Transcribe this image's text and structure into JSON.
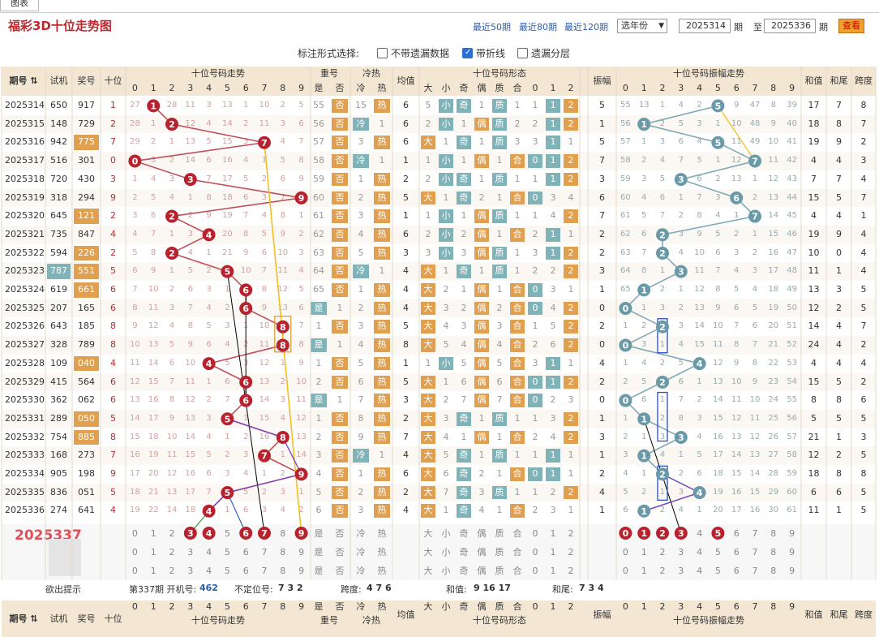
{
  "tab": {
    "label": "图表"
  },
  "header": {
    "title": "福彩3D十位走势图",
    "quick_links": [
      "最近50期",
      "最近80期",
      "最近120期"
    ],
    "year_select": "选年份",
    "from_value": "2025314",
    "from_suffix": "期",
    "to_label": "至",
    "to_value": "2025336",
    "to_suffix": "期",
    "query_button": "查看"
  },
  "options": {
    "label": "标注形式选择:",
    "items": [
      {
        "label": "不带遗漏数据",
        "checked": false
      },
      {
        "label": "带折线",
        "checked": true
      },
      {
        "label": "遗漏分层",
        "checked": false
      }
    ]
  },
  "table_headers": {
    "period": "期号",
    "trial": "试机",
    "prize": "奖号",
    "tens": "十位",
    "trend": "十位号码走势",
    "repeat": "重号",
    "repeat_sub": [
      "是",
      "否"
    ],
    "coldhot": "冷热",
    "coldhot_sub": [
      "冷",
      "热"
    ],
    "avg": "均值",
    "form": "十位号码形态",
    "form_sub": [
      "大",
      "小",
      "奇",
      "偶",
      "质",
      "合",
      "0",
      "1",
      "2"
    ],
    "amp": "振幅",
    "amp_trend": "十位号码振幅走势",
    "sum": "和值",
    "tail": "和尾",
    "span": "跨度",
    "digits": [
      "0",
      "1",
      "2",
      "3",
      "4",
      "5",
      "6",
      "7",
      "8",
      "9"
    ]
  },
  "rows": [
    {
      "p": "2025314",
      "t": "650",
      "z": "917",
      "d": 1,
      "tr": [
        "27",
        "",
        "28",
        "11",
        "3",
        "13",
        "1",
        "10",
        "2",
        "5"
      ],
      "rp": [
        "55",
        "否"
      ],
      "ch": [
        "15",
        "热"
      ],
      "av": "6",
      "fm": [
        "5",
        "小",
        "奇",
        "1",
        "质",
        "1",
        "1",
        "1",
        "2"
      ],
      "am": 5,
      "ao": [
        "55",
        "13",
        "1",
        "4",
        "2",
        "",
        "9",
        "47",
        "8",
        "39"
      ],
      "s": "17",
      "w": "7",
      "k": "8"
    },
    {
      "p": "2025315",
      "t": "148",
      "z": "729",
      "d": 2,
      "tr": [
        "28",
        "1",
        "",
        "12",
        "4",
        "14",
        "2",
        "11",
        "3",
        "6"
      ],
      "rp": [
        "56",
        "否"
      ],
      "ch": [
        "冷",
        "1"
      ],
      "av": "6",
      "fm": [
        "2",
        "小",
        "1",
        "偶",
        "质",
        "2",
        "2",
        "1",
        "2"
      ],
      "am": 1,
      "ao": [
        "56",
        "",
        "2",
        "5",
        "3",
        "1",
        "10",
        "48",
        "9",
        "40"
      ],
      "s": "18",
      "w": "8",
      "k": "7"
    },
    {
      "p": "2025316",
      "t": "942",
      "z": "775",
      "d": 7,
      "tr": [
        "29",
        "2",
        "1",
        "13",
        "5",
        "15",
        "3",
        "",
        "4",
        "7"
      ],
      "rp": [
        "57",
        "否"
      ],
      "ch": [
        "3",
        "热"
      ],
      "av": "6",
      "fm": [
        "大",
        "1",
        "奇",
        "1",
        "质",
        "3",
        "3",
        "1",
        "1"
      ],
      "am": 5,
      "ao": [
        "57",
        "1",
        "3",
        "6",
        "4",
        "",
        "11",
        "49",
        "10",
        "41"
      ],
      "s": "19",
      "w": "9",
      "k": "2"
    },
    {
      "p": "2025317",
      "t": "516",
      "z": "301",
      "d": 0,
      "tr": [
        "",
        "3",
        "2",
        "14",
        "6",
        "16",
        "4",
        "1",
        "5",
        "8"
      ],
      "rp": [
        "58",
        "否"
      ],
      "ch": [
        "冷",
        "1"
      ],
      "av": "1",
      "fm": [
        "1",
        "小",
        "1",
        "偶",
        "1",
        "合",
        "0",
        "1",
        "2"
      ],
      "am": 7,
      "ao": [
        "58",
        "2",
        "4",
        "7",
        "5",
        "1",
        "12",
        "",
        "11",
        "42"
      ],
      "s": "4",
      "w": "4",
      "k": "3"
    },
    {
      "p": "2025318",
      "t": "720",
      "z": "430",
      "d": 3,
      "tr": [
        "1",
        "4",
        "3",
        "",
        "7",
        "17",
        "5",
        "2",
        "6",
        "9"
      ],
      "rp": [
        "59",
        "否"
      ],
      "ch": [
        "1",
        "热"
      ],
      "av": "2",
      "fm": [
        "2",
        "小",
        "奇",
        "1",
        "质",
        "1",
        "1",
        "1",
        "2"
      ],
      "am": 3,
      "ao": [
        "59",
        "3",
        "5",
        "",
        "6",
        "2",
        "13",
        "1",
        "12",
        "43"
      ],
      "s": "7",
      "w": "7",
      "k": "4"
    },
    {
      "p": "2025319",
      "t": "318",
      "z": "294",
      "d": 9,
      "tr": [
        "2",
        "5",
        "4",
        "1",
        "8",
        "18",
        "6",
        "3",
        "7",
        ""
      ],
      "rp": [
        "60",
        "否"
      ],
      "ch": [
        "2",
        "热"
      ],
      "av": "5",
      "fm": [
        "大",
        "1",
        "奇",
        "2",
        "1",
        "合",
        "0",
        "3",
        "4"
      ],
      "am": 6,
      "ao": [
        "60",
        "4",
        "6",
        "1",
        "7",
        "3",
        "",
        "2",
        "13",
        "44"
      ],
      "s": "15",
      "w": "5",
      "k": "7"
    },
    {
      "p": "2025320",
      "t": "645",
      "z": "121",
      "d": 2,
      "tr": [
        "3",
        "6",
        "",
        "2",
        "9",
        "19",
        "7",
        "4",
        "8",
        "1"
      ],
      "rp": [
        "61",
        "否"
      ],
      "ch": [
        "3",
        "热"
      ],
      "av": "1",
      "fm": [
        "1",
        "小",
        "1",
        "偶",
        "质",
        "1",
        "1",
        "4",
        "2"
      ],
      "am": 7,
      "ao": [
        "61",
        "5",
        "7",
        "2",
        "8",
        "4",
        "1",
        "",
        "14",
        "45"
      ],
      "s": "4",
      "w": "4",
      "k": "1"
    },
    {
      "p": "2025321",
      "t": "735",
      "z": "847",
      "d": 4,
      "tr": [
        "4",
        "7",
        "1",
        "3",
        "",
        "20",
        "8",
        "5",
        "9",
        "2"
      ],
      "rp": [
        "62",
        "否"
      ],
      "ch": [
        "4",
        "热"
      ],
      "av": "6",
      "fm": [
        "2",
        "小",
        "2",
        "偶",
        "1",
        "合",
        "2",
        "1",
        "1"
      ],
      "am": 2,
      "ao": [
        "62",
        "6",
        "",
        "3",
        "9",
        "5",
        "2",
        "1",
        "15",
        "46"
      ],
      "s": "19",
      "w": "9",
      "k": "4"
    },
    {
      "p": "2025322",
      "t": "594",
      "z": "226",
      "d": 2,
      "tr": [
        "5",
        "8",
        "",
        "4",
        "1",
        "21",
        "9",
        "6",
        "10",
        "3"
      ],
      "rp": [
        "63",
        "否"
      ],
      "ch": [
        "5",
        "热"
      ],
      "av": "3",
      "fm": [
        "3",
        "小",
        "3",
        "偶",
        "质",
        "1",
        "3",
        "1",
        "2"
      ],
      "am": 2,
      "ao": [
        "63",
        "7",
        "",
        "4",
        "10",
        "6",
        "3",
        "2",
        "16",
        "47"
      ],
      "s": "10",
      "w": "0",
      "k": "4"
    },
    {
      "p": "2025323",
      "t": "787",
      "z": "551",
      "d": 5,
      "tr": [
        "6",
        "9",
        "1",
        "5",
        "2",
        "",
        "10",
        "7",
        "11",
        "4"
      ],
      "rp": [
        "64",
        "否"
      ],
      "ch": [
        "冷",
        "1"
      ],
      "av": "4",
      "fm": [
        "大",
        "1",
        "奇",
        "1",
        "质",
        "1",
        "2",
        "2",
        "2"
      ],
      "am": 3,
      "ao": [
        "64",
        "8",
        "1",
        "",
        "11",
        "7",
        "4",
        "3",
        "17",
        "48"
      ],
      "s": "11",
      "w": "1",
      "k": "4"
    },
    {
      "p": "2025324",
      "t": "619",
      "z": "661",
      "d": 6,
      "tr": [
        "7",
        "10",
        "2",
        "6",
        "3",
        "1",
        "",
        "8",
        "12",
        "5"
      ],
      "rp": [
        "65",
        "否"
      ],
      "ch": [
        "1",
        "热"
      ],
      "av": "4",
      "fm": [
        "大",
        "2",
        "1",
        "偶",
        "1",
        "合",
        "0",
        "3",
        "1"
      ],
      "am": 1,
      "ao": [
        "65",
        "",
        "2",
        "1",
        "12",
        "8",
        "5",
        "4",
        "18",
        "49"
      ],
      "s": "13",
      "w": "3",
      "k": "5"
    },
    {
      "p": "2025325",
      "t": "207",
      "z": "165",
      "d": 6,
      "tr": [
        "8",
        "11",
        "3",
        "7",
        "4",
        "2",
        "",
        "9",
        "13",
        "6"
      ],
      "rp": [
        "是",
        "1"
      ],
      "ch": [
        "2",
        "热"
      ],
      "av": "4",
      "fm": [
        "大",
        "3",
        "2",
        "偶",
        "2",
        "合",
        "0",
        "4",
        "2"
      ],
      "am": 0,
      "ao": [
        "",
        "1",
        "3",
        "2",
        "13",
        "9",
        "6",
        "5",
        "19",
        "50"
      ],
      "s": "12",
      "w": "2",
      "k": "5"
    },
    {
      "p": "2025326",
      "t": "643",
      "z": "185",
      "d": 8,
      "tr": [
        "9",
        "12",
        "4",
        "8",
        "5",
        "3",
        "1",
        "10",
        "",
        "7"
      ],
      "rp": [
        "1",
        "否"
      ],
      "ch": [
        "3",
        "热"
      ],
      "av": "5",
      "fm": [
        "大",
        "4",
        "3",
        "偶",
        "3",
        "合",
        "1",
        "5",
        "2"
      ],
      "am": 2,
      "ao": [
        "1",
        "2",
        "",
        "3",
        "14",
        "10",
        "7",
        "6",
        "20",
        "51"
      ],
      "s": "14",
      "w": "4",
      "k": "7"
    },
    {
      "p": "2025327",
      "t": "328",
      "z": "789",
      "d": 8,
      "tr": [
        "10",
        "13",
        "5",
        "9",
        "6",
        "4",
        "2",
        "11",
        "",
        "8"
      ],
      "rp": [
        "是",
        "1"
      ],
      "ch": [
        "4",
        "热"
      ],
      "av": "8",
      "fm": [
        "大",
        "5",
        "4",
        "偶",
        "4",
        "合",
        "2",
        "6",
        "2"
      ],
      "am": 0,
      "ao": [
        "",
        "3",
        "1",
        "4",
        "15",
        "11",
        "8",
        "7",
        "21",
        "52"
      ],
      "s": "24",
      "w": "4",
      "k": "2"
    },
    {
      "p": "2025328",
      "t": "109",
      "z": "040",
      "d": 4,
      "tr": [
        "11",
        "14",
        "6",
        "10",
        "",
        "5",
        "3",
        "12",
        "1",
        "9"
      ],
      "rp": [
        "1",
        "否"
      ],
      "ch": [
        "5",
        "热"
      ],
      "av": "1",
      "fm": [
        "1",
        "小",
        "5",
        "偶",
        "5",
        "合",
        "3",
        "1",
        "1"
      ],
      "am": 4,
      "ao": [
        "1",
        "4",
        "2",
        "5",
        "",
        "12",
        "9",
        "8",
        "22",
        "53"
      ],
      "s": "4",
      "w": "4",
      "k": "4"
    },
    {
      "p": "2025329",
      "t": "415",
      "z": "564",
      "d": 6,
      "tr": [
        "12",
        "15",
        "7",
        "11",
        "1",
        "6",
        "",
        "13",
        "2",
        "10"
      ],
      "rp": [
        "2",
        "否"
      ],
      "ch": [
        "6",
        "热"
      ],
      "av": "5",
      "fm": [
        "大",
        "1",
        "6",
        "偶",
        "6",
        "合",
        "0",
        "1",
        "2"
      ],
      "am": 2,
      "ao": [
        "2",
        "5",
        "",
        "6",
        "1",
        "13",
        "10",
        "9",
        "23",
        "54"
      ],
      "s": "15",
      "w": "5",
      "k": "2"
    },
    {
      "p": "2025330",
      "t": "362",
      "z": "062",
      "d": 6,
      "tr": [
        "13",
        "16",
        "8",
        "12",
        "2",
        "7",
        "",
        "14",
        "3",
        "11"
      ],
      "rp": [
        "是",
        "1"
      ],
      "ch": [
        "7",
        "热"
      ],
      "av": "3",
      "fm": [
        "大",
        "2",
        "7",
        "偶",
        "7",
        "合",
        "0",
        "2",
        "3"
      ],
      "am": 0,
      "ao": [
        "",
        "6",
        "1",
        "7",
        "2",
        "14",
        "11",
        "10",
        "24",
        "55"
      ],
      "s": "8",
      "w": "8",
      "k": "6"
    },
    {
      "p": "2025331",
      "t": "289",
      "z": "050",
      "d": 5,
      "tr": [
        "14",
        "17",
        "9",
        "13",
        "3",
        "",
        "1",
        "15",
        "4",
        "12"
      ],
      "rp": [
        "1",
        "否"
      ],
      "ch": [
        "8",
        "热"
      ],
      "av": "2",
      "fm": [
        "大",
        "3",
        "奇",
        "1",
        "质",
        "1",
        "1",
        "3",
        "2"
      ],
      "am": 1,
      "ao": [
        "1",
        "",
        "2",
        "8",
        "3",
        "15",
        "12",
        "11",
        "25",
        "56"
      ],
      "s": "5",
      "w": "5",
      "k": "5"
    },
    {
      "p": "2025332",
      "t": "754",
      "z": "885",
      "d": 8,
      "tr": [
        "15",
        "18",
        "10",
        "14",
        "4",
        "1",
        "2",
        "16",
        "",
        "13"
      ],
      "rp": [
        "2",
        "否"
      ],
      "ch": [
        "9",
        "热"
      ],
      "av": "7",
      "fm": [
        "大",
        "4",
        "1",
        "偶",
        "1",
        "合",
        "2",
        "4",
        "2"
      ],
      "am": 3,
      "ao": [
        "2",
        "1",
        "3",
        "",
        "4",
        "16",
        "13",
        "12",
        "26",
        "57"
      ],
      "s": "21",
      "w": "1",
      "k": "3"
    },
    {
      "p": "2025333",
      "t": "168",
      "z": "273",
      "d": 7,
      "tr": [
        "16",
        "19",
        "11",
        "15",
        "5",
        "2",
        "3",
        "",
        "1",
        "14"
      ],
      "rp": [
        "3",
        "否"
      ],
      "ch": [
        "冷",
        "1"
      ],
      "av": "4",
      "fm": [
        "大",
        "5",
        "奇",
        "1",
        "质",
        "1",
        "1",
        "1",
        "1"
      ],
      "am": 1,
      "ao": [
        "3",
        "",
        "4",
        "1",
        "5",
        "17",
        "14",
        "13",
        "27",
        "58"
      ],
      "s": "12",
      "w": "2",
      "k": "5"
    },
    {
      "p": "2025334",
      "t": "905",
      "z": "198",
      "d": 9,
      "tr": [
        "17",
        "20",
        "12",
        "16",
        "6",
        "3",
        "4",
        "1",
        "2",
        ""
      ],
      "rp": [
        "4",
        "否"
      ],
      "ch": [
        "1",
        "热"
      ],
      "av": "6",
      "fm": [
        "大",
        "6",
        "奇",
        "2",
        "1",
        "合",
        "0",
        "1",
        "1"
      ],
      "am": 2,
      "ao": [
        "4",
        "1",
        "",
        "2",
        "6",
        "18",
        "15",
        "14",
        "28",
        "59"
      ],
      "s": "18",
      "w": "8",
      "k": "8"
    },
    {
      "p": "2025335",
      "t": "836",
      "z": "051",
      "d": 5,
      "tr": [
        "18",
        "21",
        "13",
        "17",
        "7",
        "",
        "5",
        "2",
        "3",
        "1"
      ],
      "rp": [
        "5",
        "否"
      ],
      "ch": [
        "2",
        "热"
      ],
      "av": "2",
      "fm": [
        "大",
        "7",
        "奇",
        "3",
        "质",
        "1",
        "1",
        "2",
        "2"
      ],
      "am": 4,
      "ao": [
        "5",
        "2",
        "1",
        "3",
        "",
        "19",
        "16",
        "15",
        "29",
        "60"
      ],
      "s": "6",
      "w": "6",
      "k": "5"
    },
    {
      "p": "2025336",
      "t": "274",
      "z": "641",
      "d": 4,
      "tr": [
        "19",
        "22",
        "14",
        "18",
        "",
        "1",
        "6",
        "3",
        "4",
        "2"
      ],
      "rp": [
        "6",
        "否"
      ],
      "ch": [
        "3",
        "热"
      ],
      "av": "4",
      "fm": [
        "大",
        "1",
        "奇",
        "4",
        "1",
        "合",
        "2",
        "3",
        "1"
      ],
      "am": 1,
      "ao": [
        "6",
        "",
        "2",
        "4",
        "1",
        "20",
        "17",
        "16",
        "30",
        "61"
      ],
      "s": "11",
      "w": "1",
      "k": "5"
    }
  ],
  "predict": {
    "period": "2025337",
    "trend_marked": [
      3,
      4,
      6,
      7,
      9
    ],
    "amp_marked": [
      0,
      1,
      2,
      3,
      5
    ],
    "form_row": [
      "大",
      "小",
      "奇",
      "偶",
      "质",
      "合",
      "0",
      "1",
      "2"
    ],
    "repeat_row": [
      "是",
      "否"
    ],
    "coldhot_row": [
      "冷",
      "热"
    ]
  },
  "hints": {
    "label": "欲出提示",
    "open_label": "第337期 开机号:",
    "open_value": "462",
    "unfixed_label": "不定位号:",
    "unfixed_value": "7 3 2",
    "span_label": "跨度:",
    "span_value": "4 7 6",
    "sum_label": "和值:",
    "sum_value": "9 16 17",
    "tail_label": "和尾:",
    "tail_value": "7 3 4"
  },
  "colors": {
    "ball_red": "#b8222e",
    "ball_teal": "#6a9aa8",
    "line_red": "#c0505a",
    "line_teal": "#80aab5",
    "highlight_yellow": "#f0c020",
    "orange_cell": "#e0a050",
    "teal_cell": "#7fb3b8",
    "header_bg": "#f3e7d3"
  }
}
